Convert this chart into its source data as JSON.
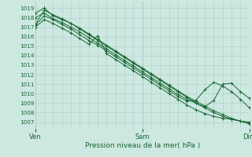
{
  "bg_color": "#cce8e0",
  "grid_color": "#aacfc8",
  "line_color": "#1a6632",
  "title": "Pression niveau de la mer( hPa )",
  "xlabel_ven": "Ven",
  "xlabel_sam": "Sam",
  "xlabel_dim": "Dim",
  "ylim": [
    1006.3,
    1019.7
  ],
  "yticks": [
    1007,
    1008,
    1009,
    1010,
    1011,
    1012,
    1013,
    1014,
    1015,
    1016,
    1017,
    1018,
    1019
  ],
  "xlim": [
    0,
    48
  ],
  "n_pts": 49,
  "lines": [
    {
      "pts": [
        [
          0,
          1018.5
        ],
        [
          2,
          1019.0
        ],
        [
          4,
          1018.2
        ],
        [
          6,
          1017.8
        ],
        [
          8,
          1017.4
        ],
        [
          10,
          1016.9
        ],
        [
          12,
          1016.3
        ],
        [
          14,
          1015.7
        ],
        [
          16,
          1015.1
        ],
        [
          18,
          1014.5
        ],
        [
          20,
          1013.9
        ],
        [
          22,
          1013.3
        ],
        [
          24,
          1012.7
        ],
        [
          26,
          1012.1
        ],
        [
          28,
          1011.5
        ],
        [
          30,
          1010.9
        ],
        [
          32,
          1010.3
        ],
        [
          34,
          1009.7
        ],
        [
          36,
          1009.2
        ],
        [
          38,
          1008.7
        ],
        [
          40,
          1008.2
        ],
        [
          42,
          1007.8
        ],
        [
          44,
          1007.4
        ],
        [
          46,
          1007.1
        ],
        [
          48,
          1007.0
        ]
      ]
    },
    {
      "pts": [
        [
          0,
          1018.0
        ],
        [
          2,
          1018.5
        ],
        [
          4,
          1017.9
        ],
        [
          6,
          1017.5
        ],
        [
          8,
          1017.0
        ],
        [
          10,
          1016.5
        ],
        [
          12,
          1015.9
        ],
        [
          14,
          1015.3
        ],
        [
          16,
          1014.7
        ],
        [
          18,
          1014.1
        ],
        [
          20,
          1013.5
        ],
        [
          22,
          1012.9
        ],
        [
          24,
          1012.3
        ],
        [
          26,
          1011.7
        ],
        [
          28,
          1011.1
        ],
        [
          30,
          1010.5
        ],
        [
          32,
          1009.9
        ],
        [
          34,
          1009.4
        ],
        [
          36,
          1009.0
        ],
        [
          38,
          1008.6
        ],
        [
          40,
          1009.3
        ],
        [
          42,
          1011.0
        ],
        [
          44,
          1011.1
        ],
        [
          46,
          1010.2
        ],
        [
          48,
          1009.5
        ]
      ]
    },
    {
      "pts": [
        [
          0,
          1017.2
        ],
        [
          2,
          1018.2
        ],
        [
          4,
          1017.8
        ],
        [
          6,
          1017.3
        ],
        [
          8,
          1016.8
        ],
        [
          10,
          1016.2
        ],
        [
          12,
          1015.6
        ],
        [
          14,
          1015.1
        ],
        [
          16,
          1014.5
        ],
        [
          18,
          1013.9
        ],
        [
          20,
          1013.3
        ],
        [
          22,
          1012.7
        ],
        [
          24,
          1012.1
        ],
        [
          26,
          1011.5
        ],
        [
          28,
          1010.9
        ],
        [
          30,
          1010.3
        ],
        [
          32,
          1009.7
        ],
        [
          34,
          1009.2
        ],
        [
          36,
          1009.3
        ],
        [
          38,
          1010.4
        ],
        [
          40,
          1011.2
        ],
        [
          42,
          1010.8
        ],
        [
          44,
          1010.2
        ],
        [
          46,
          1009.4
        ],
        [
          48,
          1008.5
        ]
      ]
    },
    {
      "pts": [
        [
          0,
          1017.0
        ],
        [
          2,
          1017.8
        ],
        [
          4,
          1017.4
        ],
        [
          6,
          1016.9
        ],
        [
          8,
          1016.4
        ],
        [
          10,
          1015.8
        ],
        [
          12,
          1015.2
        ],
        [
          14,
          1016.1
        ],
        [
          16,
          1014.2
        ],
        [
          18,
          1013.6
        ],
        [
          20,
          1013.0
        ],
        [
          22,
          1012.4
        ],
        [
          24,
          1011.8
        ],
        [
          26,
          1011.2
        ],
        [
          28,
          1010.6
        ],
        [
          30,
          1010.0
        ],
        [
          32,
          1009.4
        ],
        [
          34,
          1008.8
        ],
        [
          36,
          1008.3
        ],
        [
          38,
          1007.9
        ],
        [
          40,
          1007.6
        ],
        [
          42,
          1007.4
        ],
        [
          44,
          1007.3
        ],
        [
          46,
          1007.1
        ],
        [
          48,
          1006.8
        ]
      ]
    },
    {
      "pts": [
        [
          0,
          1017.3
        ],
        [
          2,
          1018.8
        ],
        [
          4,
          1018.3
        ],
        [
          6,
          1017.9
        ],
        [
          8,
          1017.4
        ],
        [
          10,
          1016.8
        ],
        [
          12,
          1016.2
        ],
        [
          14,
          1015.6
        ],
        [
          16,
          1015.0
        ],
        [
          18,
          1014.4
        ],
        [
          20,
          1013.8
        ],
        [
          22,
          1013.2
        ],
        [
          24,
          1012.6
        ],
        [
          26,
          1012.0
        ],
        [
          28,
          1011.4
        ],
        [
          30,
          1010.8
        ],
        [
          32,
          1010.2
        ],
        [
          34,
          1009.6
        ],
        [
          36,
          1009.0
        ],
        [
          38,
          1008.5
        ],
        [
          40,
          1008.0
        ],
        [
          42,
          1007.6
        ],
        [
          44,
          1007.3
        ],
        [
          46,
          1007.1
        ],
        [
          48,
          1006.9
        ]
      ]
    }
  ]
}
